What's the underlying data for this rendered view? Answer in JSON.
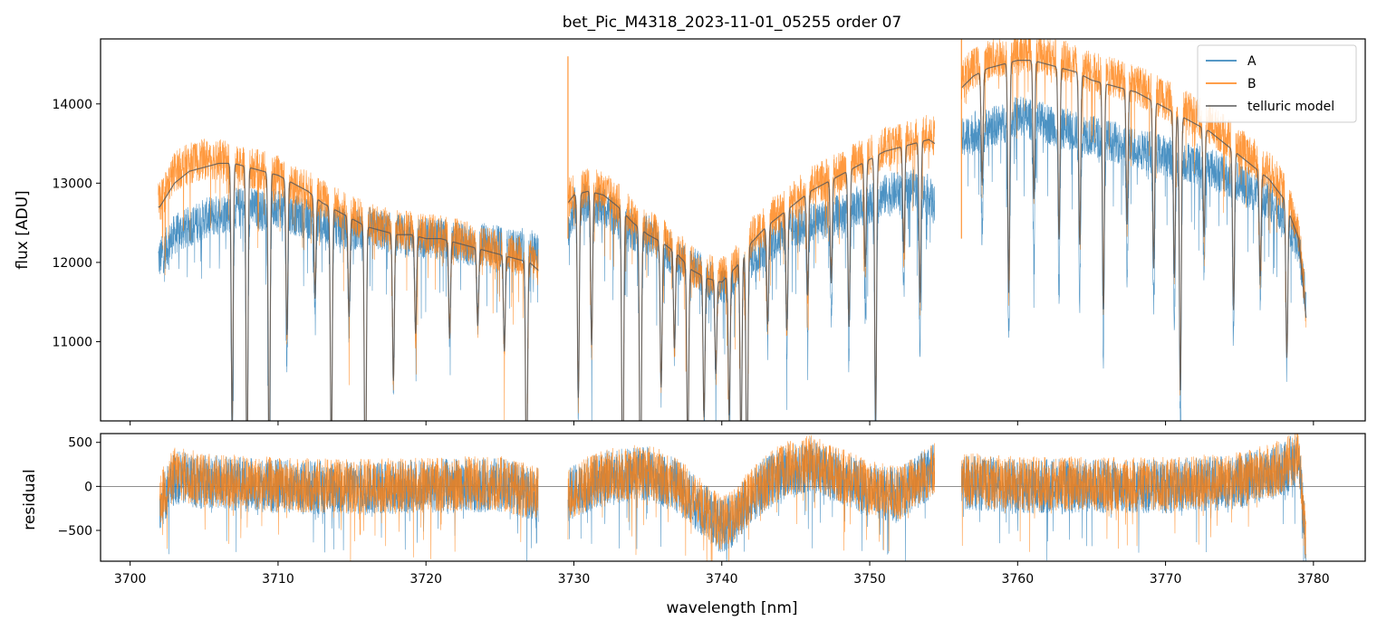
{
  "chart_data": [
    {
      "type": "line",
      "panel": "top",
      "title": "bet_Pic_M4318_2023-11-01_05255  order 07",
      "xlabel": "",
      "ylabel": "flux [ADU]",
      "xlim": [
        3698.0,
        3783.5
      ],
      "ylim": [
        10000,
        14820
      ],
      "yticks": [
        11000,
        12000,
        13000,
        14000
      ],
      "ytick_labels": [
        "11000",
        "12000",
        "13000",
        "14000"
      ],
      "xticks": [
        3700,
        3710,
        3720,
        3730,
        3740,
        3750,
        3760,
        3770,
        3780
      ],
      "xtick_labels": [],
      "segments": [
        [
          3701.9,
          3727.6
        ],
        [
          3729.6,
          3754.4
        ],
        [
          3756.2,
          3779.5
        ]
      ],
      "legend": {
        "placement": "top-right",
        "entries": [
          {
            "label": "A",
            "color": "#1f77b4"
          },
          {
            "label": "B",
            "color": "#ff7f0e"
          },
          {
            "label": "telluric model",
            "color": "#595959"
          }
        ]
      },
      "series": [
        {
          "name": "A",
          "color": "#1f77b4",
          "x": [
            3702.0,
            3702.5,
            3703.0,
            3704.0,
            3705.0,
            3706.0,
            3707.0,
            3708.0,
            3709.0,
            3710.0,
            3711.0,
            3712.0,
            3713.0,
            3714.0,
            3715.0,
            3716.0,
            3717.0,
            3718.0,
            3719.0,
            3720.0,
            3721.0,
            3722.0,
            3723.0,
            3724.0,
            3725.0,
            3726.0,
            3727.0,
            3727.6,
            3729.6,
            3730.0,
            3731.0,
            3732.0,
            3733.0,
            3734.0,
            3735.0,
            3736.0,
            3737.0,
            3738.0,
            3739.0,
            3740.0,
            3741.0,
            3742.0,
            3743.0,
            3744.0,
            3745.0,
            3746.0,
            3747.0,
            3748.0,
            3749.0,
            3750.0,
            3751.0,
            3752.0,
            3753.0,
            3754.0,
            3754.4,
            3756.2,
            3757.0,
            3758.0,
            3759.0,
            3760.0,
            3761.0,
            3762.0,
            3763.0,
            3764.0,
            3765.0,
            3766.0,
            3767.0,
            3768.0,
            3769.0,
            3770.0,
            3771.0,
            3772.0,
            3773.0,
            3774.0,
            3775.0,
            3776.0,
            3777.0,
            3778.0,
            3779.0,
            3779.5
          ],
          "y": [
            12050,
            12200,
            12350,
            12450,
            12550,
            12600,
            12680,
            12700,
            12650,
            12700,
            12600,
            12550,
            12500,
            12450,
            12400,
            12450,
            12400,
            12350,
            12350,
            12300,
            12300,
            12250,
            12200,
            12250,
            12200,
            12150,
            12200,
            12100,
            12450,
            12700,
            12750,
            12700,
            12550,
            12400,
            12350,
            12200,
            12050,
            11950,
            11800,
            11700,
            11850,
            12050,
            12200,
            12350,
            12450,
            12500,
            12550,
            12600,
            12700,
            12750,
            12850,
            12900,
            12950,
            12850,
            12700,
            13550,
            13650,
            13700,
            13750,
            13850,
            13800,
            13750,
            13700,
            13650,
            13600,
            13550,
            13500,
            13450,
            13400,
            13350,
            13300,
            13250,
            13200,
            13100,
            13000,
            12900,
            12800,
            12600,
            12200,
            11500
          ]
        },
        {
          "name": "B",
          "color": "#ff7f0e",
          "x": [
            3702.0,
            3702.5,
            3703.0,
            3704.0,
            3705.0,
            3706.0,
            3707.0,
            3708.0,
            3709.0,
            3710.0,
            3711.0,
            3712.0,
            3713.0,
            3714.0,
            3715.0,
            3716.0,
            3717.0,
            3718.0,
            3719.0,
            3720.0,
            3721.0,
            3722.0,
            3723.0,
            3724.0,
            3725.0,
            3726.0,
            3727.0,
            3727.6,
            3729.6,
            3730.0,
            3731.0,
            3732.0,
            3733.0,
            3734.0,
            3735.0,
            3736.0,
            3737.0,
            3738.0,
            3739.0,
            3740.0,
            3741.0,
            3742.0,
            3743.0,
            3744.0,
            3745.0,
            3746.0,
            3747.0,
            3748.0,
            3749.0,
            3750.0,
            3751.0,
            3752.0,
            3753.0,
            3754.0,
            3754.4,
            3756.2,
            3757.0,
            3758.0,
            3759.0,
            3760.0,
            3761.0,
            3762.0,
            3763.0,
            3764.0,
            3765.0,
            3766.0,
            3767.0,
            3768.0,
            3769.0,
            3770.0,
            3771.0,
            3772.0,
            3773.0,
            3774.0,
            3775.0,
            3776.0,
            3777.0,
            3778.0,
            3779.0,
            3779.5
          ],
          "y": [
            12750,
            12950,
            13150,
            13250,
            13300,
            13300,
            13250,
            13200,
            13150,
            13100,
            13000,
            12900,
            12800,
            12700,
            12600,
            12500,
            12450,
            12400,
            12400,
            12350,
            12350,
            12300,
            12250,
            12200,
            12150,
            12100,
            12050,
            11950,
            12800,
            12900,
            12950,
            12900,
            12750,
            12550,
            12400,
            12300,
            12150,
            11950,
            11850,
            11800,
            12000,
            12300,
            12500,
            12650,
            12800,
            12950,
            13050,
            13150,
            13250,
            13350,
            13450,
            13500,
            13550,
            13650,
            13600,
            14300,
            14450,
            14550,
            14600,
            14650,
            14650,
            14600,
            14550,
            14500,
            14400,
            14350,
            14300,
            14250,
            14150,
            14050,
            13950,
            13850,
            13750,
            13600,
            13450,
            13300,
            13150,
            12900,
            12400,
            11400
          ]
        },
        {
          "name": "telluric model",
          "color": "#595959",
          "x": [
            3702.0,
            3702.5,
            3703.0,
            3704.0,
            3705.0,
            3706.0,
            3707.0,
            3708.0,
            3709.0,
            3710.0,
            3711.0,
            3712.0,
            3713.0,
            3714.0,
            3715.0,
            3716.0,
            3717.0,
            3718.0,
            3719.0,
            3720.0,
            3721.0,
            3722.0,
            3723.0,
            3724.0,
            3725.0,
            3726.0,
            3727.0,
            3727.6,
            3729.6,
            3730.0,
            3731.0,
            3732.0,
            3733.0,
            3734.0,
            3735.0,
            3736.0,
            3737.0,
            3738.0,
            3739.0,
            3740.0,
            3741.0,
            3742.0,
            3743.0,
            3744.0,
            3745.0,
            3746.0,
            3747.0,
            3748.0,
            3749.0,
            3750.0,
            3751.0,
            3752.0,
            3753.0,
            3754.0,
            3754.4,
            3756.2,
            3757.0,
            3758.0,
            3759.0,
            3760.0,
            3761.0,
            3762.0,
            3763.0,
            3764.0,
            3765.0,
            3766.0,
            3767.0,
            3768.0,
            3769.0,
            3770.0,
            3771.0,
            3772.0,
            3773.0,
            3774.0,
            3775.0,
            3776.0,
            3777.0,
            3778.0,
            3779.0,
            3779.5
          ],
          "y": [
            12700,
            12850,
            13000,
            13150,
            13200,
            13250,
            13250,
            13200,
            13150,
            13100,
            13000,
            12900,
            12750,
            12650,
            12550,
            12450,
            12400,
            12350,
            12350,
            12300,
            12300,
            12250,
            12200,
            12150,
            12100,
            12050,
            12000,
            11900,
            12750,
            12850,
            12900,
            12850,
            12700,
            12500,
            12350,
            12250,
            12100,
            11900,
            11800,
            11750,
            11950,
            12250,
            12450,
            12600,
            12750,
            12900,
            13000,
            13100,
            13200,
            13300,
            13400,
            13450,
            13500,
            13550,
            13500,
            14200,
            14350,
            14450,
            14500,
            14550,
            14550,
            14500,
            14450,
            14400,
            14300,
            14250,
            14200,
            14150,
            14050,
            13950,
            13850,
            13750,
            13650,
            13500,
            13350,
            13200,
            13050,
            12800,
            12300,
            11300
          ]
        }
      ],
      "absorption_lines": [
        3706.9,
        3707.9,
        3709.4,
        3710.6,
        3712.5,
        3713.6,
        3714.8,
        3715.9,
        3717.8,
        3719.3,
        3721.6,
        3723.5,
        3725.3,
        3726.8,
        3730.3,
        3731.2,
        3733.3,
        3734.5,
        3735.9,
        3736.8,
        3737.7,
        3738.8,
        3739.6,
        3740.5,
        3741.3,
        3741.7,
        3743.1,
        3744.4,
        3745.8,
        3747.4,
        3748.6,
        3749.7,
        3750.4,
        3752.3,
        3753.4,
        3757.6,
        3759.4,
        3761.1,
        3762.8,
        3764.2,
        3765.8,
        3767.4,
        3769.2,
        3770.6,
        3771.0,
        3772.6,
        3774.6,
        3776.4,
        3778.2
      ],
      "absorption_depths": [
        0.25,
        0.3,
        0.3,
        0.15,
        0.1,
        0.25,
        0.1,
        0.3,
        0.15,
        0.1,
        0.1,
        0.08,
        0.1,
        0.25,
        0.2,
        0.15,
        0.3,
        0.3,
        0.15,
        0.1,
        0.2,
        0.15,
        0.1,
        0.15,
        0.2,
        0.25,
        0.1,
        0.12,
        0.1,
        0.1,
        0.15,
        0.1,
        0.25,
        0.1,
        0.15,
        0.1,
        0.2,
        0.12,
        0.15,
        0.15,
        0.2,
        0.12,
        0.15,
        0.15,
        0.25,
        0.1,
        0.15,
        0.1,
        0.15
      ]
    },
    {
      "type": "line",
      "panel": "bottom",
      "title": "",
      "xlabel": "wavelength [nm]",
      "ylabel": "residual",
      "xlim": [
        3698.0,
        3783.5
      ],
      "ylim": [
        -850,
        600
      ],
      "yticks": [
        -500,
        0,
        500
      ],
      "ytick_labels": [
        "−500",
        "0",
        "500"
      ],
      "xticks": [
        3700,
        3710,
        3720,
        3730,
        3740,
        3750,
        3760,
        3770,
        3780
      ],
      "xtick_labels": [
        "3700",
        "3710",
        "3720",
        "3730",
        "3740",
        "3750",
        "3760",
        "3770",
        "3780"
      ],
      "zero_line": true,
      "segments": [
        [
          3702.0,
          3727.6
        ],
        [
          3729.6,
          3754.4
        ],
        [
          3756.2,
          3779.5
        ]
      ],
      "series": [
        {
          "name": "A",
          "color": "#1f77b4",
          "x": [
            3702.0,
            3703.0,
            3705.0,
            3710.0,
            3715.0,
            3720.0,
            3725.0,
            3727.6,
            3729.6,
            3732.0,
            3735.0,
            3737.0,
            3739.0,
            3740.0,
            3741.0,
            3742.0,
            3744.0,
            3746.0,
            3748.0,
            3750.0,
            3752.0,
            3754.4,
            3756.2,
            3760.0,
            3765.0,
            3770.0,
            3775.0,
            3778.0,
            3779.0,
            3779.5
          ],
          "y": [
            -200,
            100,
            50,
            0,
            -20,
            0,
            20,
            -100,
            -100,
            100,
            150,
            0,
            -300,
            -450,
            -350,
            -100,
            150,
            250,
            100,
            -50,
            -100,
            200,
            50,
            0,
            0,
            0,
            50,
            200,
            350,
            -700
          ]
        },
        {
          "name": "B",
          "color": "#ff7f0e",
          "x": [
            3702.0,
            3703.0,
            3705.0,
            3710.0,
            3715.0,
            3720.0,
            3725.0,
            3727.6,
            3729.6,
            3732.0,
            3735.0,
            3737.0,
            3739.0,
            3740.0,
            3741.0,
            3742.0,
            3744.0,
            3746.0,
            3748.0,
            3750.0,
            3752.0,
            3754.4,
            3756.2,
            3760.0,
            3765.0,
            3770.0,
            3775.0,
            3778.0,
            3779.0,
            3779.5
          ],
          "y": [
            -150,
            150,
            80,
            20,
            0,
            20,
            40,
            -80,
            -80,
            120,
            180,
            20,
            -280,
            -420,
            -320,
            -80,
            180,
            280,
            130,
            -20,
            -80,
            220,
            80,
            30,
            30,
            30,
            80,
            230,
            380,
            -650
          ]
        }
      ]
    }
  ]
}
